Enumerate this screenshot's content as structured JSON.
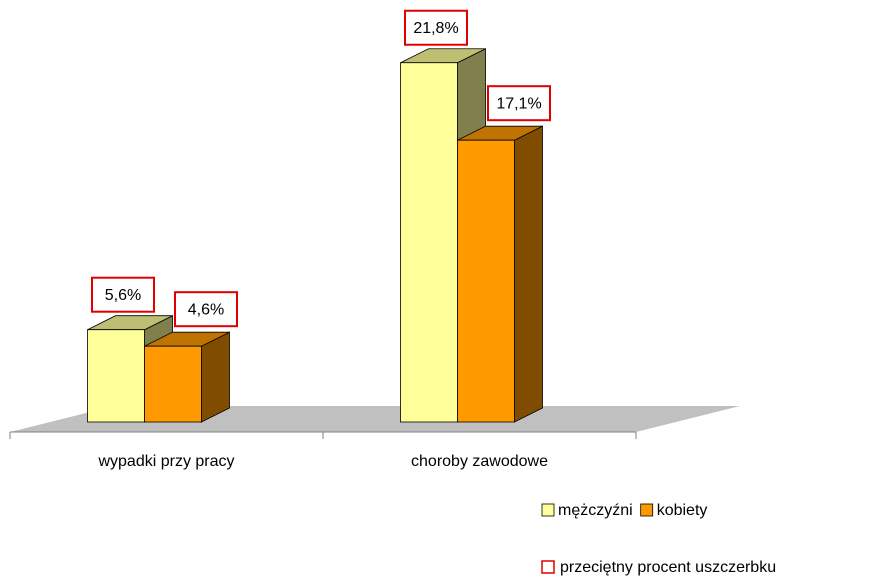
{
  "chart_data": {
    "type": "bar3d",
    "categories": [
      "wypadki przy pracy",
      "choroby zawodowe"
    ],
    "series": [
      {
        "name": "mężczyźni",
        "color": "#ffff99",
        "values": [
          5.6,
          21.8
        ],
        "value_labels": [
          "5,6%",
          "21,8%"
        ]
      },
      {
        "name": "kobiety",
        "color": "#ff9900",
        "values": [
          4.6,
          17.1
        ],
        "value_labels": [
          "4,6%",
          "17,1%"
        ]
      }
    ],
    "value_label_legend": "przeciętny procent uszczerbku",
    "ylim": [
      0,
      25
    ],
    "legend": "bottom-right"
  }
}
